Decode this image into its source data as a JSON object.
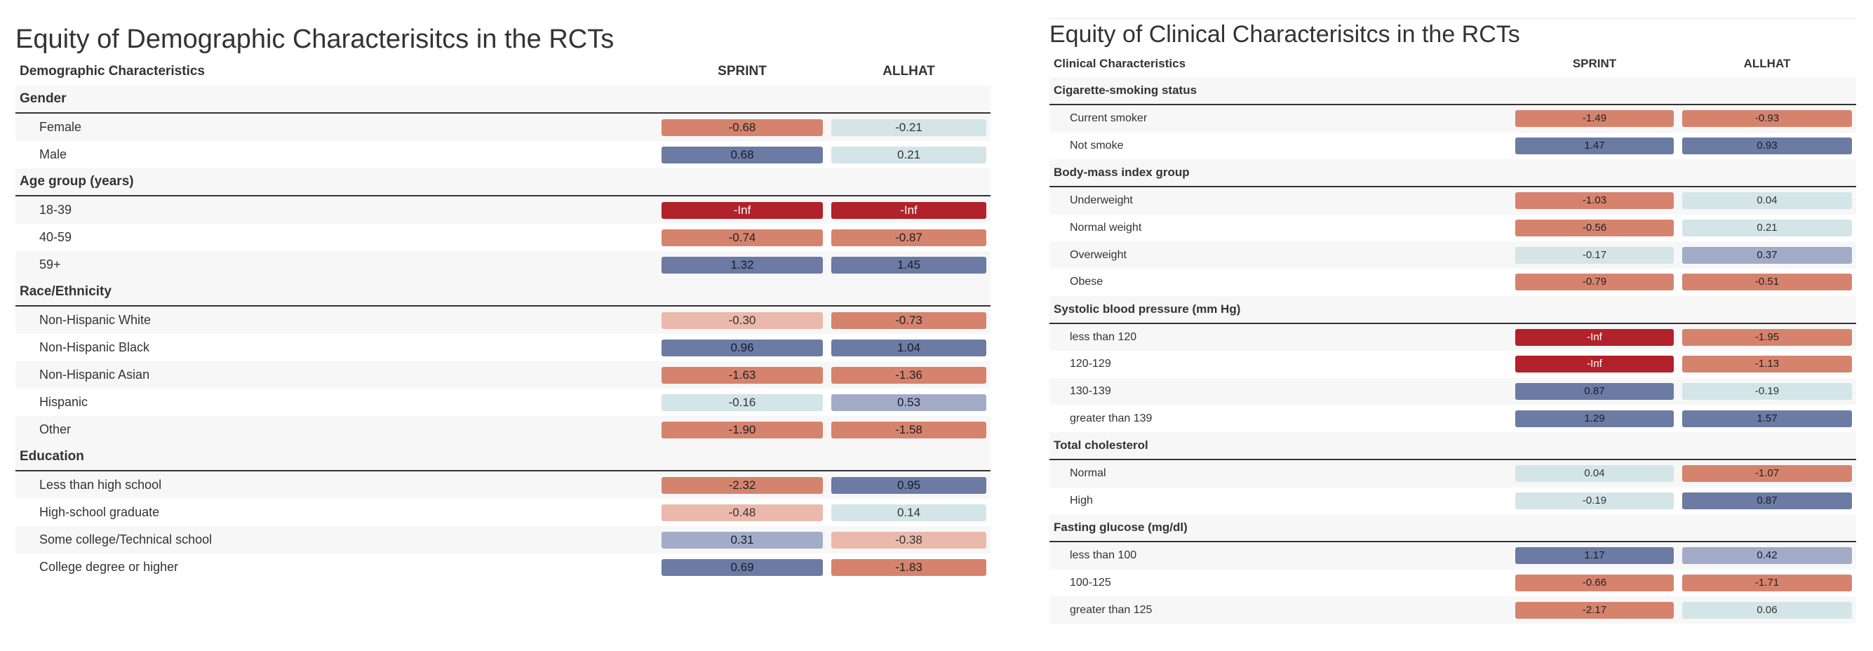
{
  "chart_data": [
    {
      "type": "table",
      "title": "Equity of Demographic Characterisitcs in the RCTs",
      "row_header": "Demographic Characteristics",
      "columns": [
        "SPRINT",
        "ALLHAT"
      ],
      "groups": [
        {
          "name": "Gender",
          "rows": [
            {
              "label": "Female",
              "values": [
                "-0.68",
                "-0.21"
              ]
            },
            {
              "label": "Male",
              "values": [
                "0.68",
                "0.21"
              ]
            }
          ]
        },
        {
          "name": "Age group (years)",
          "rows": [
            {
              "label": "18-39",
              "values": [
                "-Inf",
                "-Inf"
              ]
            },
            {
              "label": "40-59",
              "values": [
                "-0.74",
                "-0.87"
              ]
            },
            {
              "label": "59+",
              "values": [
                "1.32",
                "1.45"
              ]
            }
          ]
        },
        {
          "name": "Race/Ethnicity",
          "rows": [
            {
              "label": "Non-Hispanic White",
              "values": [
                "-0.30",
                "-0.73"
              ]
            },
            {
              "label": "Non-Hispanic Black",
              "values": [
                "0.96",
                "1.04"
              ]
            },
            {
              "label": "Non-Hispanic Asian",
              "values": [
                "-1.63",
                "-1.36"
              ]
            },
            {
              "label": "Hispanic",
              "values": [
                "-0.16",
                "0.53"
              ]
            },
            {
              "label": "Other",
              "values": [
                "-1.90",
                "-1.58"
              ]
            }
          ]
        },
        {
          "name": "Education",
          "rows": [
            {
              "label": "Less than high school",
              "values": [
                "-2.32",
                "0.95"
              ]
            },
            {
              "label": "High-school graduate",
              "values": [
                "-0.48",
                "0.14"
              ]
            },
            {
              "label": "Some college/Technical school",
              "values": [
                "0.31",
                "-0.38"
              ]
            },
            {
              "label": "College degree or higher",
              "values": [
                "0.69",
                "-1.83"
              ]
            }
          ]
        }
      ]
    },
    {
      "type": "table",
      "title": "Equity of Clinical Characterisitcs in the RCTs",
      "row_header": "Clinical Characteristics",
      "columns": [
        "SPRINT",
        "ALLHAT"
      ],
      "groups": [
        {
          "name": "Cigarette-smoking status",
          "rows": [
            {
              "label": "Current smoker",
              "values": [
                "-1.49",
                "-0.93"
              ]
            },
            {
              "label": "Not smoke",
              "values": [
                "1.47",
                "0.93"
              ]
            }
          ]
        },
        {
          "name": "Body-mass index group",
          "rows": [
            {
              "label": "Underweight",
              "values": [
                "-1.03",
                "0.04"
              ]
            },
            {
              "label": "Normal weight",
              "values": [
                "-0.56",
                "0.21"
              ]
            },
            {
              "label": "Overweight",
              "values": [
                "-0.17",
                "0.37"
              ]
            },
            {
              "label": "Obese",
              "values": [
                "-0.79",
                "-0.51"
              ]
            }
          ]
        },
        {
          "name": "Systolic blood pressure (mm Hg)",
          "rows": [
            {
              "label": "less than 120",
              "values": [
                "-Inf",
                "-1.95"
              ]
            },
            {
              "label": "120-129",
              "values": [
                "-Inf",
                "-1.13"
              ]
            },
            {
              "label": "130-139",
              "values": [
                "0.87",
                "-0.19"
              ]
            },
            {
              "label": "greater than 139",
              "values": [
                "1.29",
                "1.57"
              ]
            }
          ]
        },
        {
          "name": "Total cholesterol",
          "rows": [
            {
              "label": "Normal",
              "values": [
                "0.04",
                "-1.07"
              ]
            },
            {
              "label": "High",
              "values": [
                "-0.19",
                "0.87"
              ]
            }
          ]
        },
        {
          "name": "Fasting glucose (mg/dl)",
          "rows": [
            {
              "label": "less than 100",
              "values": [
                "1.17",
                "0.42"
              ]
            },
            {
              "label": "100-125",
              "values": [
                "-0.66",
                "-1.71"
              ]
            },
            {
              "label": "greater than 125",
              "values": [
                "-2.17",
                "0.06"
              ]
            }
          ]
        }
      ]
    }
  ],
  "colors": {
    "neg_inf": "#b2222a",
    "strong_negative": "#d6836e",
    "light_negative": "#ebb9ab",
    "neutral": "#d4e5e8",
    "light_positive": "#a2abc7",
    "strong_positive": "#6b7ba3"
  }
}
